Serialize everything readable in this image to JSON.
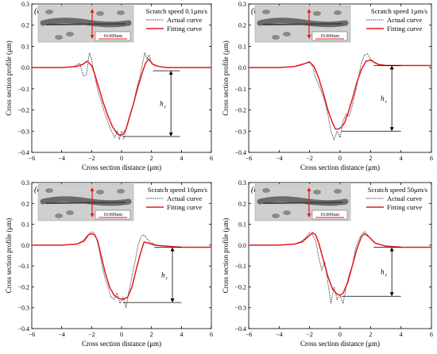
{
  "colors": {
    "fitting": "#e31a1c",
    "actual": "#333333",
    "axis": "#000000",
    "inset_bg": "#cfcfcf",
    "inset_track": "#6b6b6b",
    "inset_arrow": "#e31a1c"
  },
  "icons": [
    "sem-micrograph-inset"
  ],
  "chart_data": [
    {
      "type": "line",
      "panel": "(a)",
      "title": "Scratch speed 0.1μm/s",
      "xlabel": "Cross section distance (μm)",
      "ylabel": "Cross section profile (μm)",
      "xlim": [
        -6,
        6
      ],
      "ylim": [
        -0.4,
        0.3
      ],
      "xticks": [
        "−6",
        "−4",
        "−2",
        "0",
        "2",
        "4",
        "6"
      ],
      "yticks": [
        "−0.4",
        "−0.3",
        "−0.2",
        "−0.1",
        "0.0",
        "0.1",
        "0.2",
        "0.3"
      ],
      "depth_label": "h",
      "depth_sub": "r",
      "depth_range": [
        -0.325,
        -0.015
      ],
      "depth_x": 3.3,
      "inset_scale": "10.000um",
      "legend_position": "top-right",
      "series": [
        {
          "name": "Actual curve",
          "style": "dotted",
          "x": [
            -6,
            -4,
            -3.2,
            -2.8,
            -2.55,
            -2.35,
            -2.15,
            -2,
            -1.85,
            -1.7,
            -1.55,
            -1.4,
            -1.2,
            -1,
            -0.8,
            -0.6,
            -0.45,
            -0.3,
            -0.15,
            0,
            0.15,
            0.3,
            0.45,
            0.6,
            0.8,
            1,
            1.2,
            1.4,
            1.55,
            1.7,
            1.85,
            2,
            2.2,
            2.5,
            3,
            6
          ],
          "y": [
            0,
            0,
            0.005,
            0.02,
            -0.04,
            -0.035,
            0.07,
            0.04,
            -0.02,
            -0.07,
            -0.12,
            -0.15,
            -0.2,
            -0.24,
            -0.28,
            -0.31,
            -0.33,
            -0.3,
            -0.34,
            -0.3,
            -0.335,
            -0.29,
            -0.26,
            -0.22,
            -0.17,
            -0.1,
            -0.05,
            0.02,
            0.07,
            0.04,
            0.06,
            0.02,
            0.01,
            0.005,
            0,
            0
          ]
        },
        {
          "name": "Fitting curve",
          "style": "solid",
          "x": [
            -6,
            -4,
            -3,
            -2.6,
            -2.3,
            -2,
            -1.8,
            -1.5,
            -1.2,
            -0.9,
            -0.6,
            -0.3,
            -0.1,
            0.1,
            0.3,
            0.5,
            0.8,
            1.1,
            1.4,
            1.6,
            1.8,
            2.1,
            2.5,
            3,
            4,
            6
          ],
          "y": [
            0,
            0,
            0.005,
            0.015,
            0.03,
            0.01,
            -0.03,
            -0.1,
            -0.17,
            -0.23,
            -0.28,
            -0.31,
            -0.32,
            -0.315,
            -0.29,
            -0.24,
            -0.17,
            -0.09,
            -0.02,
            0.02,
            0.04,
            0.015,
            0.005,
            0,
            0,
            0
          ]
        }
      ]
    },
    {
      "type": "line",
      "panel": "(b)",
      "title": "Scratch speed 1μm/s",
      "xlabel": "Cross section distance (μm)",
      "ylabel": "Cross section profile (μm)",
      "xlim": [
        -6,
        6
      ],
      "ylim": [
        -0.4,
        0.3
      ],
      "xticks": [
        "−6",
        "−4",
        "−2",
        "0",
        "2",
        "4",
        "6"
      ],
      "yticks": [
        "−0.4",
        "−0.3",
        "−0.2",
        "−0.1",
        "0.0",
        "0.1",
        "0.2",
        "0.3"
      ],
      "depth_label": "h",
      "depth_sub": "r",
      "depth_range": [
        -0.3,
        0.01
      ],
      "depth_x": 3.4,
      "inset_scale": "10.000um",
      "legend_position": "top-right",
      "series": [
        {
          "name": "Actual curve",
          "style": "dotted",
          "x": [
            -6,
            -4,
            -3,
            -2.6,
            -2.3,
            -2,
            -1.8,
            -1.6,
            -1.4,
            -1.2,
            -1,
            -0.8,
            -0.6,
            -0.4,
            -0.2,
            0,
            0.2,
            0.4,
            0.6,
            0.8,
            1,
            1.2,
            1.4,
            1.6,
            1.8,
            2,
            2.3,
            2.7,
            3.2,
            6
          ],
          "y": [
            0,
            0,
            0.005,
            0.01,
            0.02,
            0.03,
            0.005,
            -0.05,
            -0.08,
            -0.12,
            -0.16,
            -0.22,
            -0.3,
            -0.34,
            -0.3,
            -0.33,
            -0.25,
            -0.22,
            -0.23,
            -0.18,
            -0.12,
            -0.05,
            0.02,
            0.06,
            0.065,
            0.04,
            0.02,
            0.01,
            0.01,
            0.01
          ]
        },
        {
          "name": "Fitting curve",
          "style": "solid",
          "x": [
            -6,
            -4,
            -3,
            -2.5,
            -2,
            -1.7,
            -1.4,
            -1.1,
            -0.8,
            -0.5,
            -0.3,
            -0.1,
            0.1,
            0.3,
            0.5,
            0.8,
            1.1,
            1.4,
            1.7,
            2,
            2.5,
            3,
            4,
            6
          ],
          "y": [
            0,
            0,
            0.005,
            0.015,
            0.025,
            0.005,
            -0.05,
            -0.12,
            -0.2,
            -0.26,
            -0.29,
            -0.29,
            -0.28,
            -0.26,
            -0.22,
            -0.15,
            -0.07,
            -0.01,
            0.03,
            0.035,
            0.015,
            0.01,
            0.01,
            0.01
          ]
        }
      ]
    },
    {
      "type": "line",
      "panel": "(c)",
      "title": "Scratch speed 10μm/s",
      "xlabel": "Cross section distance (μm)",
      "ylabel": "Cross section profile (μm)",
      "xlim": [
        -6,
        6
      ],
      "ylim": [
        -0.4,
        0.3
      ],
      "xticks": [
        "−6",
        "−4",
        "−2",
        "0",
        "2",
        "4",
        "6"
      ],
      "yticks": [
        "−0.4",
        "−0.3",
        "−0.2",
        "−0.1",
        "0.0",
        "0.1",
        "0.2",
        "0.3"
      ],
      "depth_label": "h",
      "depth_sub": "r",
      "depth_range": [
        -0.275,
        -0.01
      ],
      "depth_x": 3.4,
      "inset_scale": "10.000um",
      "legend_position": "top-right",
      "series": [
        {
          "name": "Actual curve",
          "style": "dotted",
          "x": [
            -6,
            -4,
            -3,
            -2.6,
            -2.3,
            -2.1,
            -1.9,
            -1.7,
            -1.5,
            -1.3,
            -1.1,
            -0.9,
            -0.7,
            -0.5,
            -0.3,
            -0.1,
            0.1,
            0.3,
            0.5,
            0.7,
            0.9,
            1.1,
            1.3,
            1.5,
            1.7,
            2,
            2.4,
            3,
            4,
            6
          ],
          "y": [
            0,
            0,
            0.005,
            0.02,
            0.045,
            0.06,
            0.065,
            0.04,
            -0.02,
            -0.1,
            -0.16,
            -0.2,
            -0.25,
            -0.26,
            -0.23,
            -0.28,
            -0.25,
            -0.3,
            -0.22,
            -0.15,
            -0.08,
            0,
            0.04,
            0.05,
            0.03,
            0.01,
            0,
            -0.005,
            -0.01,
            -0.01
          ]
        },
        {
          "name": "Fitting curve",
          "style": "solid",
          "x": [
            -6,
            -4,
            -3,
            -2.5,
            -2.2,
            -2,
            -1.8,
            -1.6,
            -1.4,
            -1.1,
            -0.8,
            -0.5,
            -0.2,
            0.1,
            0.4,
            0.7,
            1,
            1.3,
            1.5,
            1.8,
            2.2,
            3,
            4,
            6
          ],
          "y": [
            0,
            0,
            0.005,
            0.02,
            0.05,
            0.055,
            0.05,
            0.02,
            -0.04,
            -0.13,
            -0.2,
            -0.24,
            -0.255,
            -0.26,
            -0.25,
            -0.2,
            -0.11,
            -0.03,
            0.015,
            0.01,
            0,
            -0.005,
            -0.01,
            -0.01
          ]
        }
      ]
    },
    {
      "type": "line",
      "panel": "(d)",
      "title": "Scratch speed 50μm/s",
      "xlabel": "Cross section distance (μm)",
      "ylabel": "Cross section profile (μm)",
      "xlim": [
        -6,
        6
      ],
      "ylim": [
        -0.4,
        0.3
      ],
      "xticks": [
        "−6",
        "−4",
        "−2",
        "0",
        "2",
        "4",
        "6"
      ],
      "yticks": [
        "−0.4",
        "−0.3",
        "−0.2",
        "−0.1",
        "0.0",
        "0.1",
        "0.2",
        "0.3"
      ],
      "depth_label": "h",
      "depth_sub": "r",
      "depth_range": [
        -0.245,
        -0.01
      ],
      "depth_x": 3.4,
      "inset_scale": "10.000um",
      "legend_position": "top-right",
      "series": [
        {
          "name": "Actual curve",
          "style": "dotted",
          "x": [
            -6,
            -4,
            -3,
            -2.5,
            -2.2,
            -2,
            -1.8,
            -1.6,
            -1.4,
            -1.2,
            -1,
            -0.8,
            -0.6,
            -0.4,
            -0.2,
            0,
            0.2,
            0.4,
            0.6,
            0.8,
            1,
            1.2,
            1.4,
            1.6,
            1.8,
            2,
            2.3,
            2.7,
            3.2,
            4,
            6
          ],
          "y": [
            0,
            0,
            0.005,
            0.02,
            0.04,
            0.06,
            0.05,
            0.02,
            -0.06,
            -0.12,
            -0.08,
            -0.18,
            -0.28,
            -0.2,
            -0.26,
            -0.24,
            -0.28,
            -0.2,
            -0.14,
            -0.1,
            -0.02,
            0.02,
            0.05,
            0.065,
            0.05,
            0.03,
            0.01,
            0,
            -0.005,
            -0.01,
            -0.01
          ]
        },
        {
          "name": "Fitting curve",
          "style": "solid",
          "x": [
            -6,
            -4,
            -3,
            -2.5,
            -2.1,
            -1.8,
            -1.6,
            -1.4,
            -1.1,
            -0.8,
            -0.5,
            -0.2,
            0,
            0.2,
            0.5,
            0.8,
            1.1,
            1.4,
            1.6,
            1.9,
            2.3,
            3,
            4,
            6
          ],
          "y": [
            0,
            0,
            0.005,
            0.015,
            0.04,
            0.06,
            0.05,
            0.01,
            -0.07,
            -0.15,
            -0.21,
            -0.235,
            -0.24,
            -0.23,
            -0.18,
            -0.1,
            -0.02,
            0.04,
            0.055,
            0.04,
            0.01,
            -0.005,
            -0.01,
            -0.01
          ]
        }
      ]
    }
  ]
}
